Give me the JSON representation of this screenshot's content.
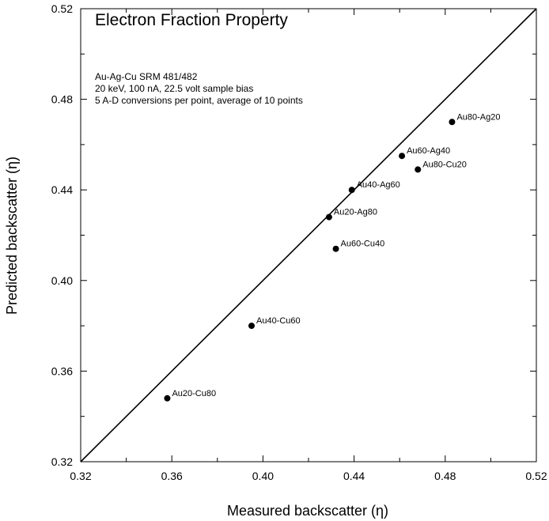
{
  "chart_data": {
    "type": "scatter",
    "title": "Electron Fraction Property",
    "annotations": [
      "Au-Ag-Cu SRM 481/482",
      "20 keV, 100 nA, 22.5 volt sample bias",
      "5 A-D conversions per point, average of 10 points"
    ],
    "xlabel": "Measured backscatter (η)",
    "ylabel": "Predicted backscatter (η)",
    "xlim": [
      0.32,
      0.52
    ],
    "ylim": [
      0.32,
      0.52
    ],
    "xticks": [
      "0.32",
      "0.36",
      "0.40",
      "0.44",
      "0.48",
      "0.52"
    ],
    "yticks": [
      "0.32",
      "0.36",
      "0.40",
      "0.44",
      "0.48",
      "0.52"
    ],
    "grid": false,
    "reference_line": {
      "x": [
        0.32,
        0.52
      ],
      "y": [
        0.32,
        0.52
      ]
    },
    "points": [
      {
        "label": "Au20-Cu80",
        "x": 0.358,
        "y": 0.348
      },
      {
        "label": "Au40-Cu60",
        "x": 0.395,
        "y": 0.38
      },
      {
        "label": "Au20-Ag80",
        "x": 0.429,
        "y": 0.428
      },
      {
        "label": "Au60-Cu40",
        "x": 0.432,
        "y": 0.414
      },
      {
        "label": "Au40-Ag60",
        "x": 0.439,
        "y": 0.44
      },
      {
        "label": "Au60-Ag40",
        "x": 0.461,
        "y": 0.455
      },
      {
        "label": "Au80-Cu20",
        "x": 0.468,
        "y": 0.449
      },
      {
        "label": "Au80-Ag20",
        "x": 0.483,
        "y": 0.47
      }
    ]
  }
}
